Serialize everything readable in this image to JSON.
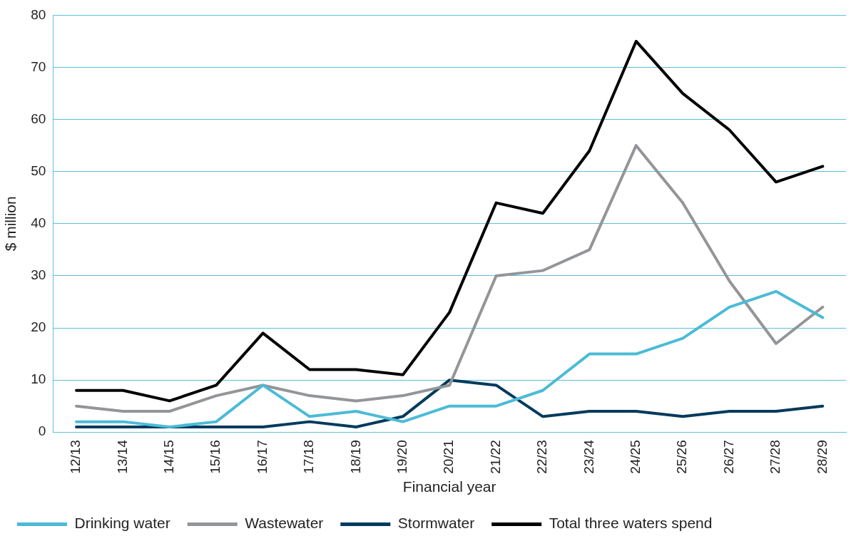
{
  "chart_data": {
    "type": "line",
    "xlabel": "Financial year",
    "ylabel": "$ million",
    "categories": [
      "12/13",
      "13/14",
      "14/15",
      "15/16",
      "16/17",
      "17/18",
      "18/19",
      "19/20",
      "20/21",
      "21/22",
      "22/23",
      "23/24",
      "24/25",
      "25/26",
      "26/27",
      "27/28",
      "28/29"
    ],
    "series": [
      {
        "name": "Drinking water",
        "color": "#4bbbd6",
        "values": [
          2,
          2,
          1,
          2,
          9,
          3,
          4,
          2,
          5,
          5,
          8,
          15,
          15,
          18,
          24,
          27,
          22
        ]
      },
      {
        "name": "Wastewater",
        "color": "#939598",
        "values": [
          5,
          4,
          4,
          7,
          9,
          7,
          6,
          7,
          9,
          30,
          31,
          35,
          55,
          44,
          29,
          17,
          24
        ]
      },
      {
        "name": "Stormwater",
        "color": "#003a5d",
        "values": [
          1,
          1,
          1,
          1,
          1,
          2,
          1,
          3,
          10,
          9,
          3,
          4,
          4,
          3,
          4,
          4,
          5
        ]
      },
      {
        "name": "Total three waters spend",
        "color": "#000000",
        "values": [
          8,
          8,
          6,
          9,
          19,
          12,
          12,
          11,
          23,
          44,
          42,
          54,
          75,
          65,
          58,
          48,
          51
        ]
      }
    ],
    "ylim": [
      0,
      80
    ],
    "yticks": [
      0,
      10,
      20,
      30,
      40,
      50,
      60,
      70,
      80
    ],
    "grid": "y",
    "legend": "bottom",
    "marker": "none",
    "line_style": "solid"
  }
}
